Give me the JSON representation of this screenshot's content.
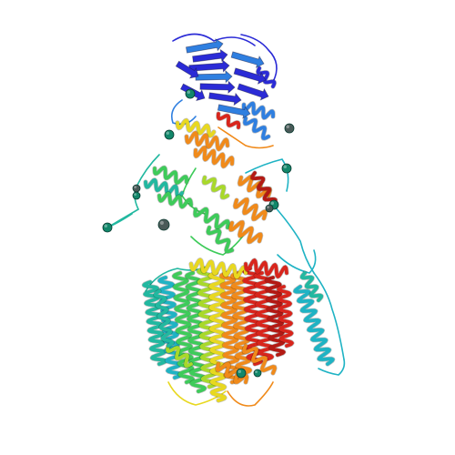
{
  "scene": {
    "subject": "protein-ribbon-structure",
    "background_color": "#ffffff",
    "color_scheme": "rainbow-n-to-c",
    "palette": {
      "blue": "#2b2bd6",
      "lightblue": "#2f7fe0",
      "cyan": "#1fb3c4",
      "teal": "#22b8a0",
      "green": "#3ecb5a",
      "lime": "#a8d92a",
      "yellow": "#e8d820",
      "orange": "#f08a1a",
      "red": "#d8251c",
      "darkred": "#b31a14"
    },
    "ligand_colors": {
      "teal_sphere": "#12876a",
      "gray_sphere": "#4a5a58"
    }
  }
}
